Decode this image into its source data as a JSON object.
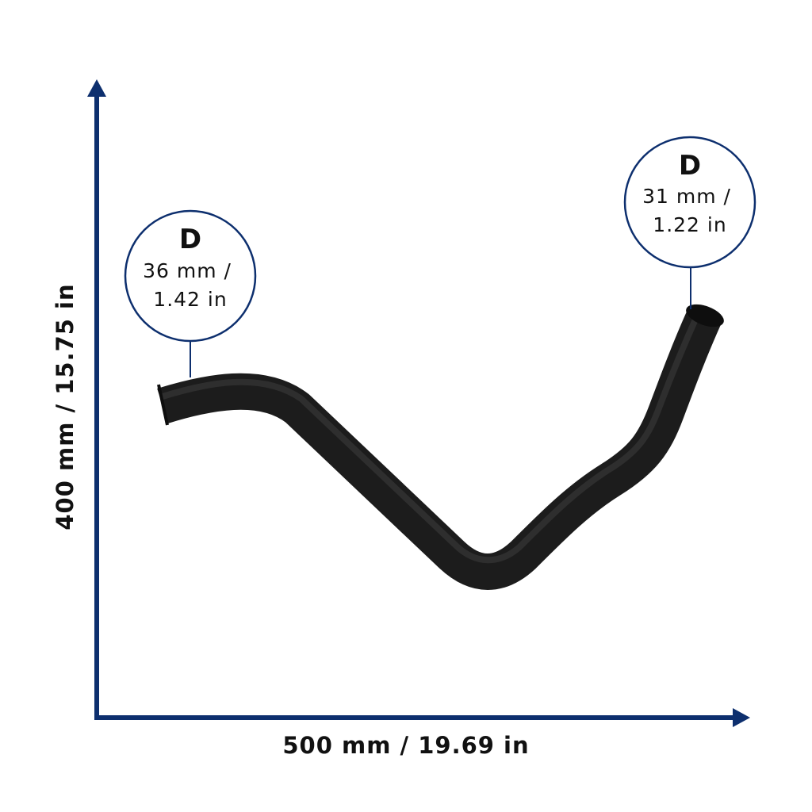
{
  "axes": {
    "y_label": "400 mm / 15.75 in",
    "x_label": "500 mm / 19.69 in"
  },
  "callouts": [
    {
      "title": "D",
      "line1": "36 mm /",
      "line2": "1.42 in"
    },
    {
      "title": "D",
      "line1": "31 mm /",
      "line2": "1.22 in"
    }
  ]
}
